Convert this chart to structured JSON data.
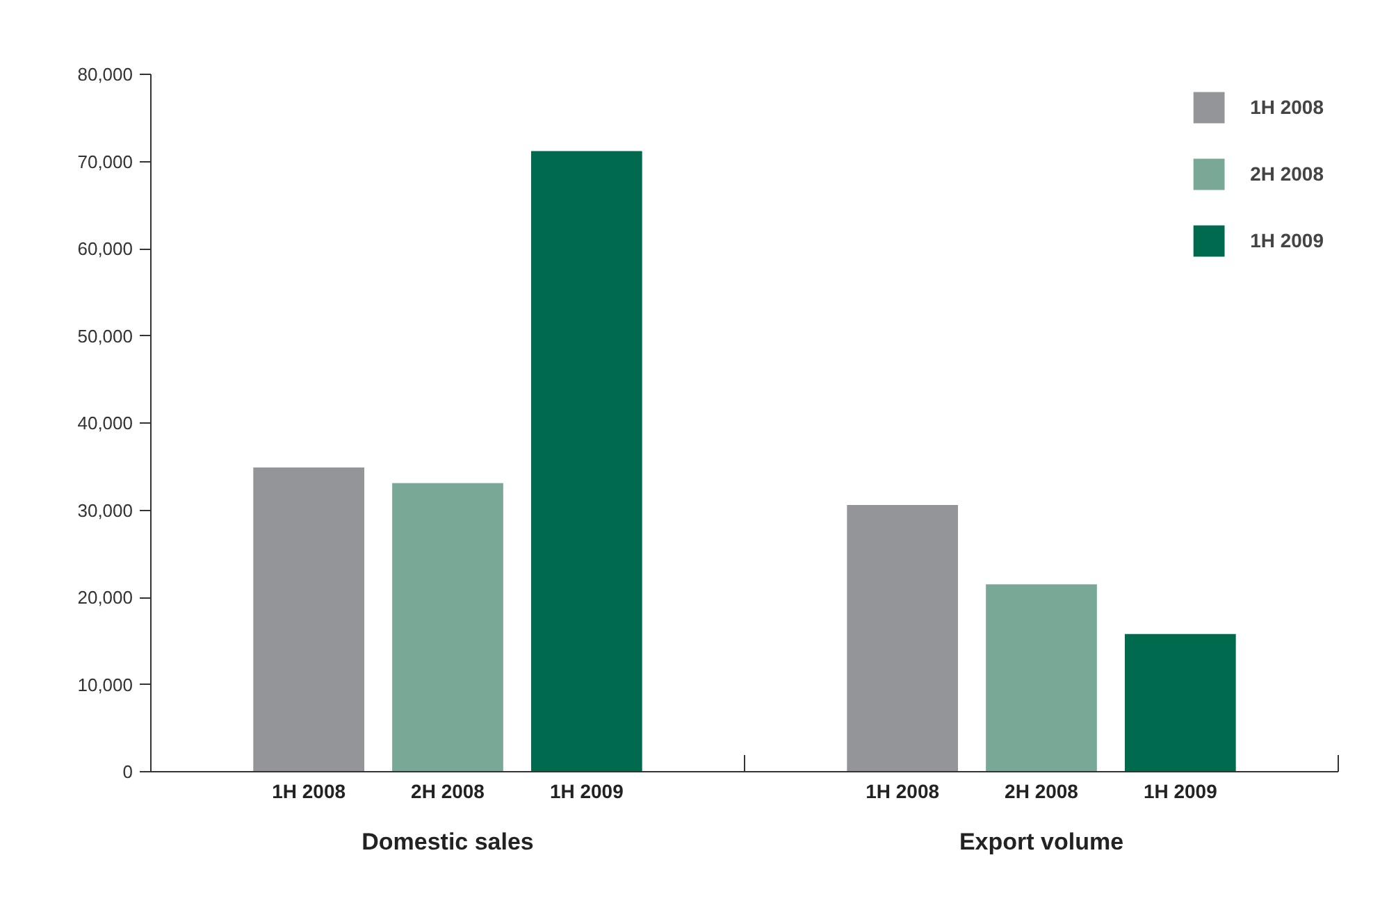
{
  "chart_data": {
    "type": "bar",
    "categories": [
      "Domestic sales",
      "Export volume"
    ],
    "series": [
      {
        "name": "1H 2008",
        "color": "#939598",
        "values": [
          34900,
          30600
        ]
      },
      {
        "name": "2H 2008",
        "color": "#7aa896",
        "values": [
          33100,
          21500
        ]
      },
      {
        "name": "1H 2009",
        "color": "#006a4e",
        "values": [
          71200,
          15800
        ]
      }
    ],
    "ylim": [
      0,
      80000
    ],
    "yticks": [
      {
        "value": 0,
        "label": "0"
      },
      {
        "value": 10000,
        "label": "10,000"
      },
      {
        "value": 20000,
        "label": "20,000"
      },
      {
        "value": 30000,
        "label": "30,000"
      },
      {
        "value": 40000,
        "label": "40,000"
      },
      {
        "value": 50000,
        "label": "50,000"
      },
      {
        "value": 60000,
        "label": "60,000"
      },
      {
        "value": 70000,
        "label": "70,000"
      },
      {
        "value": 80000,
        "label": "80,000"
      }
    ],
    "grid": false,
    "legend": "top right"
  }
}
